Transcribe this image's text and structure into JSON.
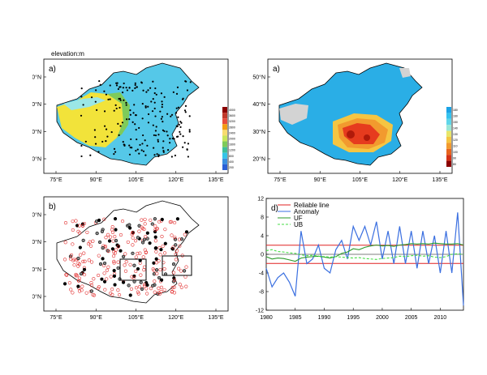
{
  "header": {
    "elevation_label": "elevation:m"
  },
  "panels": {
    "a1": {
      "label": "a)"
    },
    "a2": {
      "label": "a)"
    },
    "b": {
      "label": "b)"
    },
    "d": {
      "label": "d)"
    }
  },
  "map_axes": {
    "lon_ticks": [
      "75°E",
      "90°E",
      "105°E",
      "120°E",
      "135°E"
    ],
    "lat_ticks": [
      "50°N",
      "40°N",
      "30°N",
      "20°N"
    ]
  },
  "colorbar_elevation": {
    "labels": [
      "4000",
      "3600",
      "3200",
      "2800",
      "2400",
      "2000",
      "1600",
      "1200",
      "800",
      "400",
      "200"
    ],
    "colors": [
      "#8b0000",
      "#c0392b",
      "#e74c3c",
      "#f39c12",
      "#f7dc6f",
      "#c8e65a",
      "#7ecb5a",
      "#3fbf9a",
      "#35c5e8",
      "#3b8fe0",
      "#2a5fd6"
    ]
  },
  "colorbar_count": {
    "labels": [
      "180",
      "160",
      "150",
      "140",
      "130",
      "120",
      "110",
      "100",
      "90",
      "80"
    ],
    "colors": [
      "#1ba3e6",
      "#35c3ee",
      "#5fd6ea",
      "#9be7d6",
      "#e8e66a",
      "#f5c542",
      "#f29a2e",
      "#e8641e",
      "#d43216",
      "#8b0000"
    ]
  },
  "colors": {
    "china_blue": "#55c8e8",
    "desert_yellow": "#f2e33a",
    "green": "#7ecb5a",
    "hot_red": "#e63b1e",
    "grey": "#d3d3d3",
    "reliable": "#e02020",
    "anomaly": "#3a6fe0",
    "uf": "#2a9a2a",
    "ub": "#44dd44"
  },
  "chart_data": {
    "type": "line",
    "x": [
      1980,
      1981,
      1982,
      1983,
      1984,
      1985,
      1986,
      1987,
      1988,
      1989,
      1990,
      1991,
      1992,
      1993,
      1994,
      1995,
      1996,
      1997,
      1998,
      1999,
      2000,
      2001,
      2002,
      2003,
      2004,
      2005,
      2006,
      2007,
      2008,
      2009,
      2010,
      2011,
      2012,
      2013,
      2014
    ],
    "xticks": [
      "1980",
      "1985",
      "1990",
      "1995",
      "2000",
      "2005",
      "2010"
    ],
    "yticks": [
      "12",
      "8",
      "4",
      "0",
      "-4",
      "-8",
      "-12"
    ],
    "ylim": [
      -12,
      12
    ],
    "series": [
      {
        "name": "Reliable line",
        "values_upper": 1.96,
        "values_lower": -1.96
      },
      {
        "name": "Anomaly",
        "values": [
          -3,
          -7,
          -5,
          -4,
          -6,
          -9,
          5,
          -2,
          -1,
          2,
          -3,
          -4,
          1,
          3,
          -1,
          6,
          3,
          6,
          2,
          7,
          -1,
          5,
          -2,
          6,
          -2,
          5,
          -3,
          5,
          -2,
          4,
          -4,
          5,
          -4,
          9,
          -11
        ]
      },
      {
        "name": "UF",
        "values": [
          -0.5,
          -1.0,
          -0.8,
          -0.9,
          -1.2,
          -1.5,
          -0.8,
          -0.6,
          -0.5,
          -0.4,
          -0.6,
          -0.8,
          -0.5,
          0.2,
          0.5,
          1.2,
          1.0,
          1.5,
          1.8,
          2.0,
          1.8,
          1.9,
          1.7,
          2.0,
          2.1,
          2.3,
          2.2,
          2.3,
          2.2,
          2.4,
          2.3,
          2.2,
          2.2,
          2.3,
          2.0
        ]
      },
      {
        "name": "UB",
        "values": [
          0.8,
          1.0,
          0.6,
          0.5,
          0.3,
          0.2,
          -0.1,
          -0.3,
          -0.2,
          -0.4,
          -0.5,
          -0.6,
          -0.5,
          -0.6,
          -0.7,
          -0.8,
          -0.7,
          -0.9,
          -1.0,
          -1.1,
          -0.9,
          -0.8,
          -0.7,
          -0.4,
          -0.5,
          -0.3,
          -0.2,
          -0.4,
          -0.3,
          -0.6,
          -0.7,
          -0.5,
          0.0,
          0.1,
          0.0
        ]
      }
    ]
  }
}
